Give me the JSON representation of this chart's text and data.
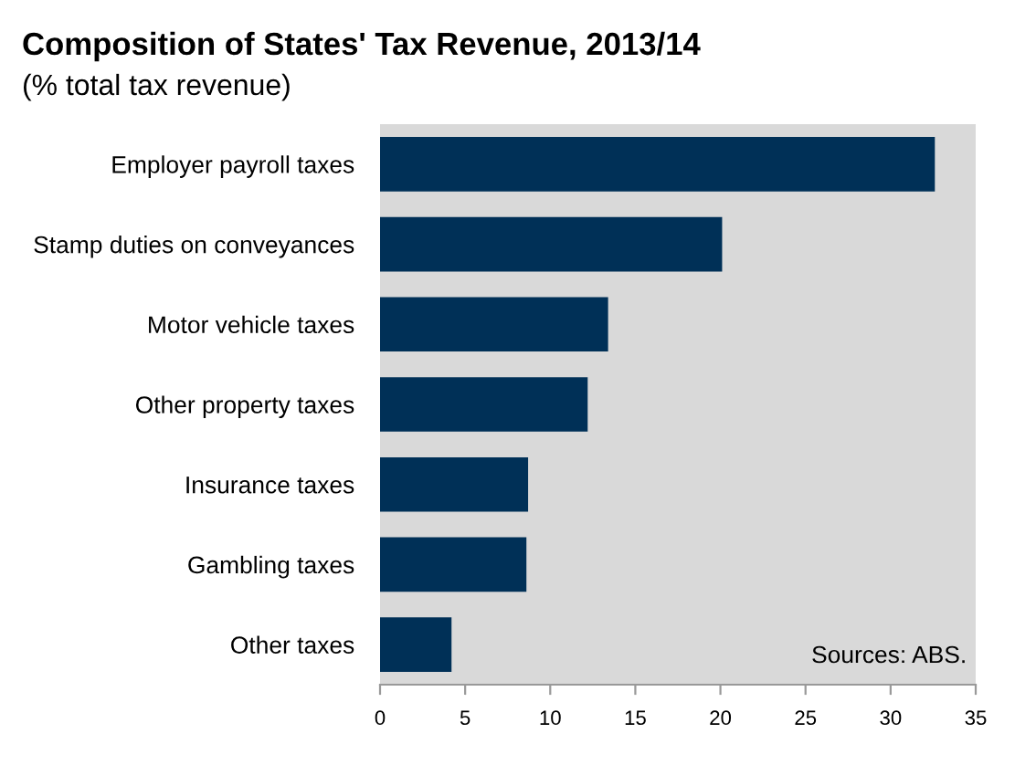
{
  "chart_data": {
    "type": "bar",
    "orientation": "horizontal",
    "title": "Composition of States' Tax Revenue, 2013/14",
    "subtitle": "(% total tax revenue)",
    "categories": [
      "Employer payroll taxes",
      "Stamp duties on conveyances",
      "Motor vehicle taxes",
      "Other property taxes",
      "Insurance taxes",
      "Gambling taxes",
      "Other taxes"
    ],
    "values": [
      32.6,
      20.1,
      13.4,
      12.2,
      8.7,
      8.6,
      4.2
    ],
    "color": "#003057",
    "xlim": [
      0,
      35
    ],
    "xticks": [
      0,
      5,
      10,
      15,
      20,
      25,
      30,
      35
    ],
    "grid": false,
    "annotations": [
      "Sources: ABS."
    ]
  }
}
